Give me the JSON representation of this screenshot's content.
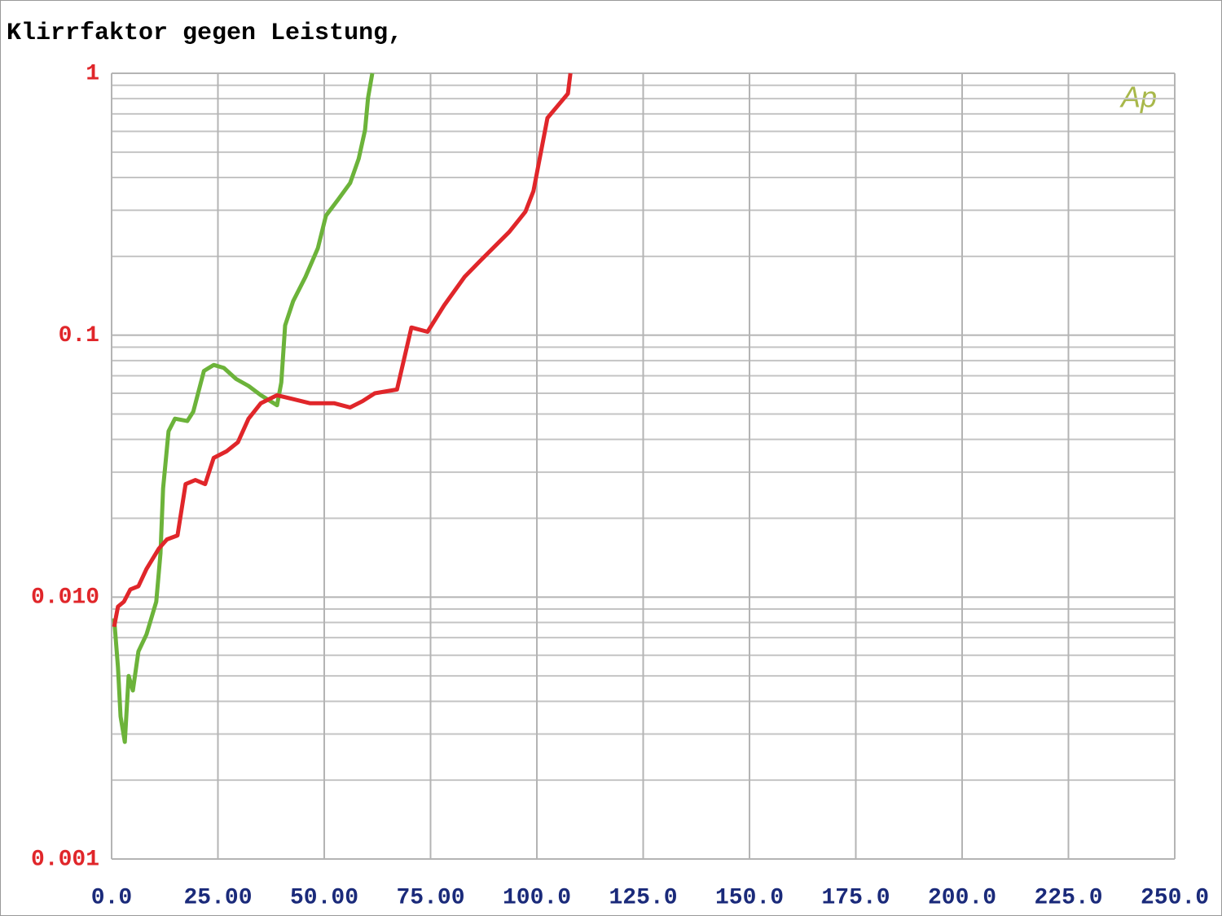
{
  "chart_data": {
    "type": "line",
    "title": "Klirrfaktor gegen Leistung,",
    "annotation": "Ap",
    "log_y": true,
    "grid": true,
    "minor_grid": true,
    "xlim": [
      0,
      250
    ],
    "ylim": [
      0.001,
      1
    ],
    "xticks": [
      {
        "value": 0,
        "label": "0.0"
      },
      {
        "value": 25,
        "label": "25.00"
      },
      {
        "value": 50,
        "label": "50.00"
      },
      {
        "value": 75,
        "label": "75.00"
      },
      {
        "value": 100,
        "label": "100.0"
      },
      {
        "value": 125,
        "label": "125.0"
      },
      {
        "value": 150,
        "label": "150.0"
      },
      {
        "value": 175,
        "label": "175.0"
      },
      {
        "value": 200,
        "label": "200.0"
      },
      {
        "value": 225,
        "label": "225.0"
      },
      {
        "value": 250,
        "label": "250.0"
      }
    ],
    "yticks": [
      0.001,
      {
        "value": 0.01,
        "label": "0.010"
      },
      0.1,
      1
    ],
    "series": [
      {
        "color": "#6cb33a",
        "x": [
          0.6,
          1.5,
          2.1,
          3.1,
          4.0,
          5.0,
          6.3,
          8.2,
          10.5,
          11.5,
          12.1,
          13.4,
          14.9,
          17.8,
          19.2,
          21.7,
          24.0,
          26.4,
          29.3,
          32.2,
          35.1,
          38.9,
          39.9,
          40.8,
          42.7,
          45.6,
          48.5,
          50.4,
          53.3,
          56.1,
          58.1,
          59.6,
          60.3,
          61.3
        ],
        "values": [
          0.0083,
          0.0054,
          0.0035,
          0.0028,
          0.005,
          0.0044,
          0.0062,
          0.0072,
          0.0096,
          0.0147,
          0.026,
          0.043,
          0.048,
          0.047,
          0.051,
          0.073,
          0.077,
          0.075,
          0.068,
          0.064,
          0.059,
          0.054,
          0.066,
          0.109,
          0.135,
          0.167,
          0.215,
          0.286,
          0.33,
          0.381,
          0.472,
          0.607,
          0.807,
          1.0
        ]
      },
      {
        "color": "#e0262a",
        "x": [
          0.6,
          1.5,
          2.9,
          4.4,
          6.3,
          8.2,
          11.1,
          13.0,
          15.5,
          17.4,
          19.7,
          22.0,
          24.0,
          27.0,
          29.7,
          32.2,
          35.1,
          38.9,
          42.7,
          46.6,
          52.3,
          56.1,
          59.0,
          61.9,
          67.1,
          70.5,
          74.3,
          78.2,
          83.0,
          86.8,
          93.5,
          97.3,
          99.2,
          102.5,
          107.3,
          107.9
        ],
        "values": [
          0.0077,
          0.0092,
          0.0096,
          0.0107,
          0.011,
          0.0128,
          0.0153,
          0.0166,
          0.0172,
          0.027,
          0.028,
          0.027,
          0.034,
          0.036,
          0.039,
          0.048,
          0.055,
          0.059,
          0.057,
          0.055,
          0.055,
          0.053,
          0.056,
          0.06,
          0.062,
          0.107,
          0.103,
          0.13,
          0.167,
          0.193,
          0.248,
          0.296,
          0.355,
          0.675,
          0.836,
          1.0
        ]
      }
    ]
  }
}
